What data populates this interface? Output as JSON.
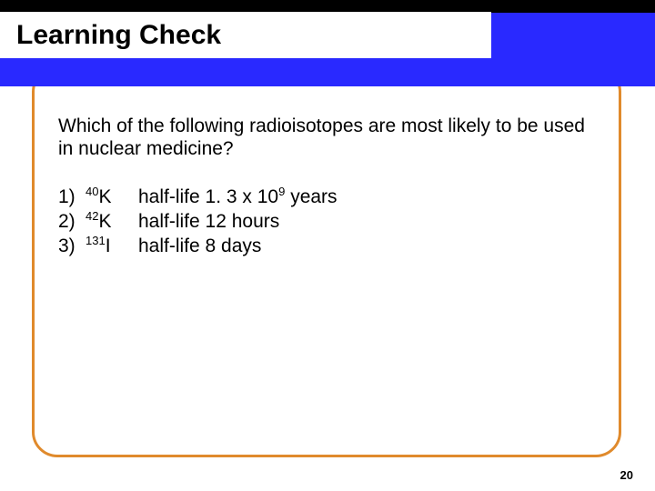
{
  "colors": {
    "header_band": "#2929ff",
    "black_strip": "#000000",
    "box_border": "#e08a2c",
    "background": "#ffffff",
    "text": "#000000"
  },
  "layout": {
    "slide_w": 720,
    "slide_h": 540,
    "box_radius": 28,
    "box_border_w": 3
  },
  "fonts": {
    "title_size": 30,
    "body_size": 21,
    "pagenum_size": 13,
    "family": "Arial"
  },
  "title": "Learning Check",
  "question": "Which of the following radioisotopes are most likely to be used in nuclear medicine?",
  "options": [
    {
      "num": "1)",
      "mass": "40",
      "sym": "K",
      "hl_label": "half-life",
      "hl_value": "1. 3 x 10",
      "hl_exp": "9",
      "hl_unit": " years"
    },
    {
      "num": "2)",
      "mass": "42",
      "sym": "K",
      "hl_label": "half-life",
      "hl_value": "12 hours",
      "hl_exp": "",
      "hl_unit": ""
    },
    {
      "num": "3)",
      "mass": "131",
      "sym": "I",
      "hl_label": "half-life",
      "hl_value": " 8 days",
      "hl_exp": "",
      "hl_unit": ""
    }
  ],
  "page_number": "20"
}
